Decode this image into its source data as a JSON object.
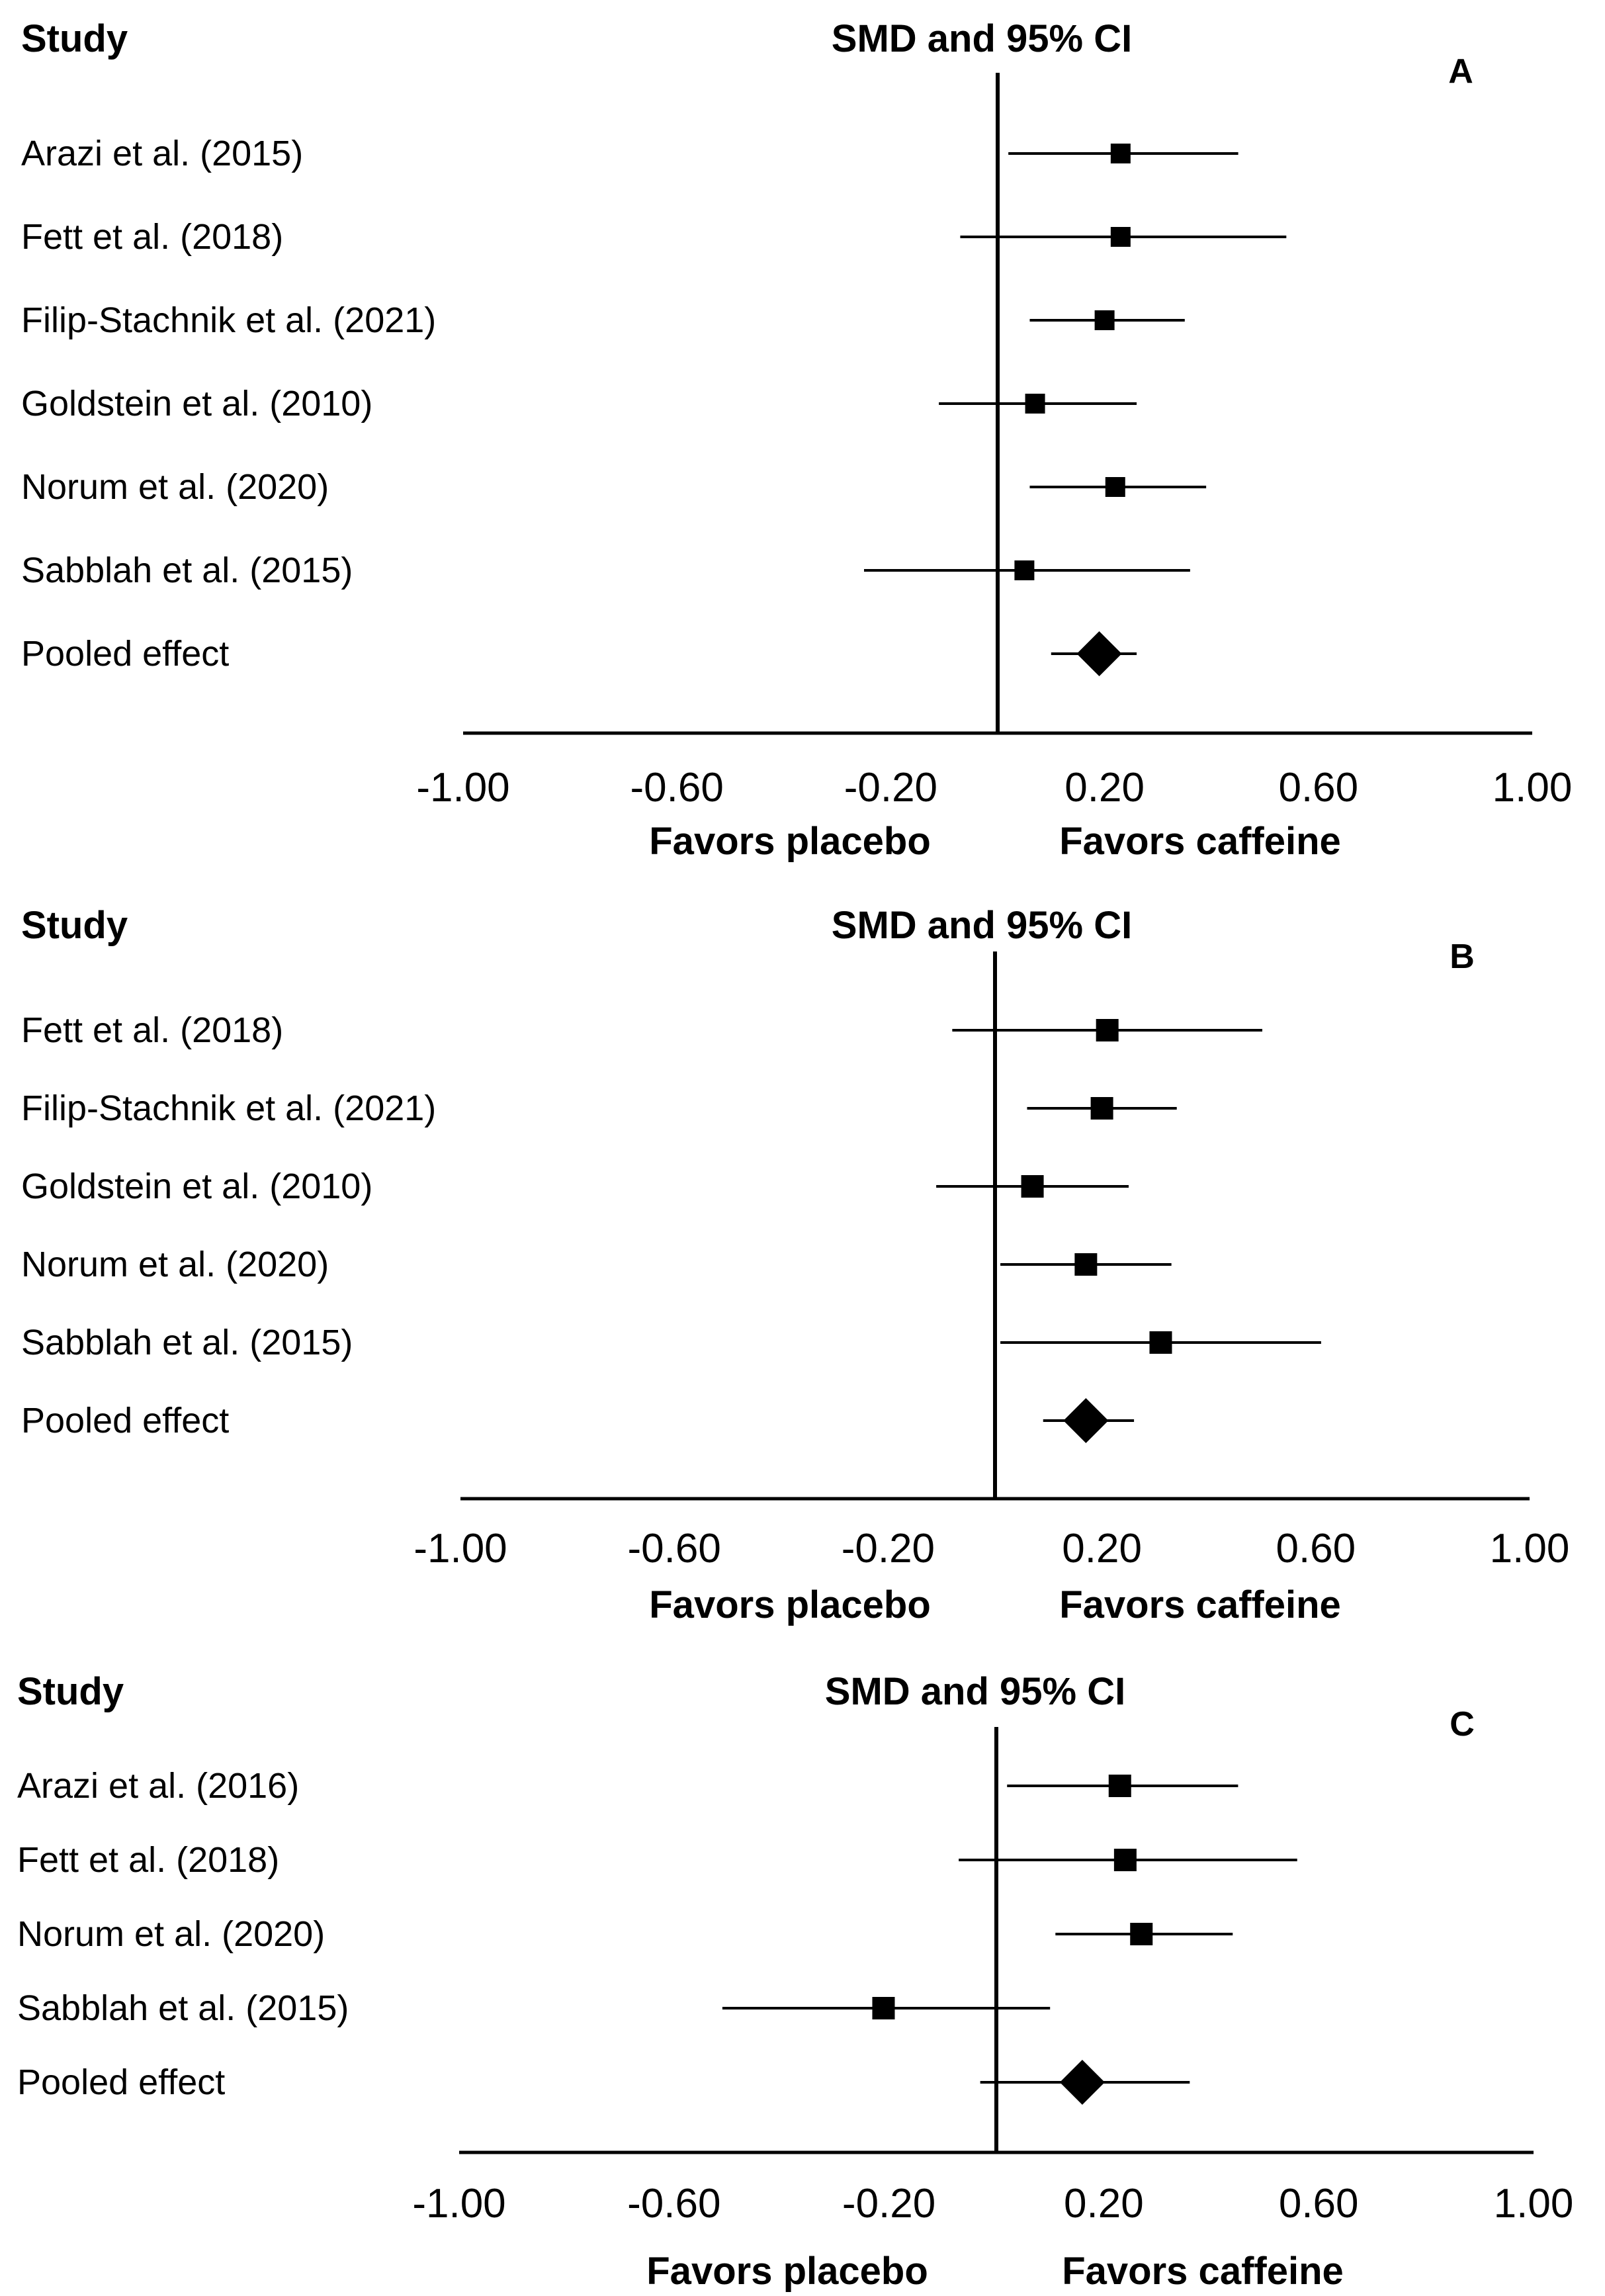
{
  "chart_data": [
    {
      "type": "forest",
      "panel": "A",
      "title_left": "Study",
      "title_center": "SMD and 95% CI",
      "studies": [
        {
          "name": "Arazi et al. (2015)",
          "smd": 0.23,
          "ci": [
            0.02,
            0.45
          ]
        },
        {
          "name": "Fett et al. (2018)",
          "smd": 0.23,
          "ci": [
            -0.07,
            0.54
          ]
        },
        {
          "name": "Filip-Stachnik et al. (2021)",
          "smd": 0.2,
          "ci": [
            0.06,
            0.35
          ]
        },
        {
          "name": "Goldstein et al. (2010)",
          "smd": 0.07,
          "ci": [
            -0.11,
            0.26
          ]
        },
        {
          "name": "Norum et al. (2020)",
          "smd": 0.22,
          "ci": [
            0.06,
            0.39
          ]
        },
        {
          "name": "Sabblah et al. (2015)",
          "smd": 0.05,
          "ci": [
            -0.25,
            0.36
          ]
        }
      ],
      "pooled": {
        "name": "Pooled effect",
        "smd": 0.19,
        "ci": [
          0.1,
          0.26
        ]
      },
      "xlim": [
        -1.0,
        1.0
      ],
      "ticks": [
        -1.0,
        -0.6,
        -0.2,
        0.2,
        0.6,
        1.0
      ],
      "tick_labels": [
        "-1.00",
        "-0.60",
        "-0.20",
        "0.20",
        "0.60",
        "1.00"
      ],
      "xlabel_left": "Favors placebo",
      "xlabel_right": "Favors caffeine"
    },
    {
      "type": "forest",
      "panel": "B",
      "title_left": "Study",
      "title_center": "SMD and 95% CI",
      "studies": [
        {
          "name": "Fett et al. (2018)",
          "smd": 0.21,
          "ci": [
            -0.08,
            0.5
          ]
        },
        {
          "name": "Filip-Stachnik et al. (2021)",
          "smd": 0.2,
          "ci": [
            0.06,
            0.34
          ]
        },
        {
          "name": "Goldstein et al. (2010)",
          "smd": 0.07,
          "ci": [
            -0.11,
            0.25
          ]
        },
        {
          "name": "Norum et al. (2020)",
          "smd": 0.17,
          "ci": [
            0.01,
            0.33
          ]
        },
        {
          "name": "Sabblah et al. (2015)",
          "smd": 0.31,
          "ci": [
            0.01,
            0.61
          ]
        }
      ],
      "pooled": {
        "name": "Pooled effect",
        "smd": 0.17,
        "ci": [
          0.09,
          0.26
        ]
      },
      "xlim": [
        -1.0,
        1.0
      ],
      "ticks": [
        -1.0,
        -0.6,
        -0.2,
        0.2,
        0.6,
        1.0
      ],
      "tick_labels": [
        "-1.00",
        "-0.60",
        "-0.20",
        "0.20",
        "0.60",
        "1.00"
      ],
      "xlabel_left": "Favors placebo",
      "xlabel_right": "Favors caffeine"
    },
    {
      "type": "forest",
      "panel": "C",
      "title_left": "Study",
      "title_center": "SMD and 95% CI",
      "studies": [
        {
          "name": "Arazi et al. (2016)",
          "smd": 0.23,
          "ci": [
            0.02,
            0.45
          ]
        },
        {
          "name": "Fett et al. (2018)",
          "smd": 0.24,
          "ci": [
            -0.07,
            0.56
          ]
        },
        {
          "name": "Norum et al. (2020)",
          "smd": 0.27,
          "ci": [
            0.11,
            0.44
          ]
        },
        {
          "name": "Sabblah et al. (2015)",
          "smd": -0.21,
          "ci": [
            -0.51,
            0.1
          ]
        }
      ],
      "pooled": {
        "name": "Pooled effect",
        "smd": 0.16,
        "ci": [
          -0.03,
          0.36
        ]
      },
      "xlim": [
        -1.0,
        1.0
      ],
      "ticks": [
        -1.0,
        -0.6,
        -0.2,
        0.2,
        0.6,
        1.0
      ],
      "tick_labels": [
        "-1.00",
        "-0.60",
        "-0.20",
        "0.20",
        "0.60",
        "1.00"
      ],
      "xlabel_left": "Favors placebo",
      "xlabel_right": "Favors caffeine"
    }
  ]
}
